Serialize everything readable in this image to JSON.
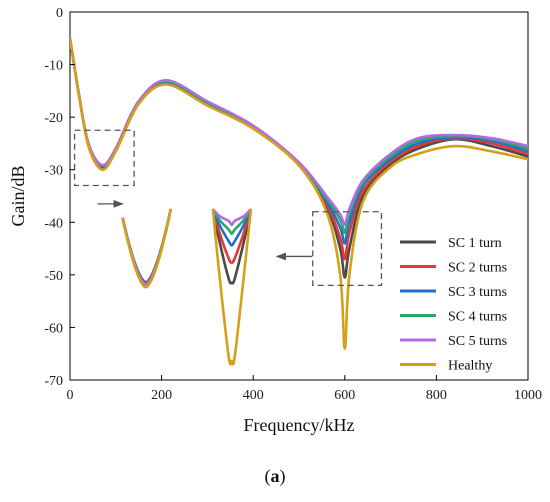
{
  "chart_data": {
    "type": "line",
    "xlabel": "Frequency/kHz",
    "ylabel": "Gain/dB",
    "xlim": [
      0,
      1000
    ],
    "ylim": [
      -70,
      0
    ],
    "xticks": [
      0,
      200,
      400,
      600,
      800,
      1000
    ],
    "yticks": [
      0,
      -10,
      -20,
      -30,
      -40,
      -50,
      -60,
      -70
    ],
    "grid": false,
    "legend_position": "right",
    "series": [
      {
        "name": "SC 1 turn",
        "color": "#4a4a4a",
        "resonance_dip": -50.5,
        "x": [
          0,
          20,
          40,
          70,
          100,
          150,
          210,
          300,
          400,
          500,
          560,
          590,
          600,
          610,
          640,
          700,
          760,
          840,
          920,
          1000
        ],
        "y": [
          -5,
          -16,
          -25,
          -29.5,
          -26,
          -17,
          -13.5,
          -17.5,
          -22,
          -29,
          -37,
          -45,
          -50.5,
          -45,
          -35,
          -29,
          -26,
          -24.2,
          -25.5,
          -27.5
        ]
      },
      {
        "name": "SC 2 turns",
        "color": "#e53935",
        "resonance_dip": -47,
        "x": [
          0,
          20,
          40,
          70,
          100,
          150,
          210,
          300,
          400,
          500,
          560,
          590,
          600,
          610,
          640,
          700,
          760,
          840,
          920,
          1000
        ],
        "y": [
          -5,
          -16,
          -25,
          -29.4,
          -26,
          -17,
          -13.4,
          -17.4,
          -21.9,
          -28.9,
          -36.5,
          -43,
          -47,
          -42,
          -34,
          -28.5,
          -25.5,
          -24,
          -25,
          -27
        ]
      },
      {
        "name": "SC 3 turns",
        "color": "#1e6fd0",
        "resonance_dip": -44,
        "x": [
          0,
          20,
          40,
          70,
          100,
          150,
          210,
          300,
          400,
          500,
          560,
          590,
          600,
          610,
          640,
          700,
          760,
          840,
          920,
          1000
        ],
        "y": [
          -5,
          -16,
          -25,
          -29.3,
          -26,
          -17,
          -13.3,
          -17.3,
          -21.8,
          -28.8,
          -36,
          -41,
          -44,
          -40,
          -33,
          -28,
          -25,
          -23.8,
          -24.5,
          -26.5
        ]
      },
      {
        "name": "SC 4 turns",
        "color": "#2aa86a",
        "resonance_dip": -42,
        "x": [
          0,
          20,
          40,
          70,
          100,
          150,
          210,
          300,
          400,
          500,
          560,
          590,
          600,
          610,
          640,
          700,
          760,
          840,
          920,
          1000
        ],
        "y": [
          -5,
          -16,
          -25,
          -29.2,
          -26,
          -17,
          -13.2,
          -17.2,
          -21.7,
          -28.7,
          -35.5,
          -39.5,
          -42,
          -38.5,
          -32.5,
          -27.5,
          -24.5,
          -23.6,
          -24.2,
          -26
        ]
      },
      {
        "name": "SC 5 turns",
        "color": "#b36ae2",
        "resonance_dip": -40.5,
        "x": [
          0,
          20,
          40,
          70,
          100,
          150,
          210,
          300,
          400,
          500,
          560,
          590,
          600,
          610,
          640,
          700,
          760,
          840,
          920,
          1000
        ],
        "y": [
          -5,
          -16,
          -25,
          -29.1,
          -26,
          -17,
          -13,
          -17,
          -21.6,
          -28.6,
          -35,
          -38.5,
          -40.5,
          -37.5,
          -32,
          -27,
          -24,
          -23.4,
          -24,
          -25.5
        ]
      },
      {
        "name": "Healthy",
        "color": "#d4a017",
        "resonance_dip": -64,
        "x": [
          0,
          20,
          40,
          70,
          100,
          150,
          210,
          300,
          400,
          500,
          560,
          590,
          600,
          610,
          640,
          700,
          760,
          840,
          920,
          1000
        ],
        "y": [
          -5,
          -16,
          -25.5,
          -30,
          -26.5,
          -17.5,
          -13.8,
          -17.8,
          -22.2,
          -29.2,
          -38,
          -50,
          -64,
          -50,
          -36,
          -29.5,
          -27,
          -25.5,
          -26.5,
          -28
        ]
      }
    ]
  },
  "caption": {
    "open": "(",
    "letter": "a",
    "close": ")"
  }
}
